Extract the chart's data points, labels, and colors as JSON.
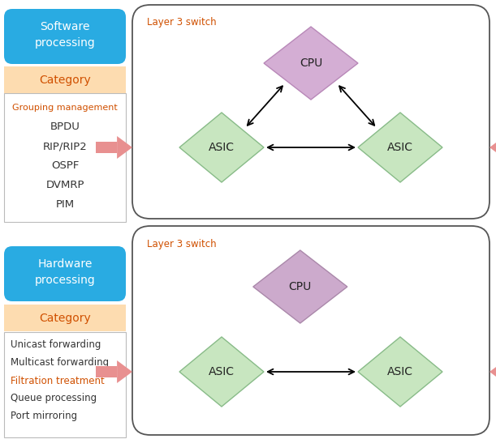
{
  "top_box_label": "Software\nprocessing",
  "top_box_color": "#29ABE2",
  "bottom_box_label": "Hardware\nprocessing",
  "bottom_box_color": "#29ABE2",
  "category_bg": "#FDDCB0",
  "category_label": "Category",
  "top_items": [
    "Grouping management",
    "BPDU",
    "RIP/RIP2",
    "OSPF",
    "DVMRP",
    "PIM"
  ],
  "top_items_colors": [
    "#D05000",
    "#333333",
    "#333333",
    "#333333",
    "#333333",
    "#333333"
  ],
  "bottom_items": [
    "Unicast forwarding",
    "Multicast forwarding",
    "Filtration treatment",
    "Queue processing",
    "Port mirroring"
  ],
  "bottom_items_colors": [
    "#333333",
    "#333333",
    "#D05000",
    "#333333",
    "#333333"
  ],
  "switch_label": "Layer 3 switch",
  "switch_label_color": "#D05000",
  "cpu_color": "#D4AED4",
  "cpu_border": "#B888B8",
  "cpu2_color": "#CCAACC",
  "cpu2_border": "#AA88AA",
  "asic_color": "#C8E6C0",
  "asic_border": "#88BB88",
  "arrow_color": "#E89090",
  "box_border": "#555555"
}
